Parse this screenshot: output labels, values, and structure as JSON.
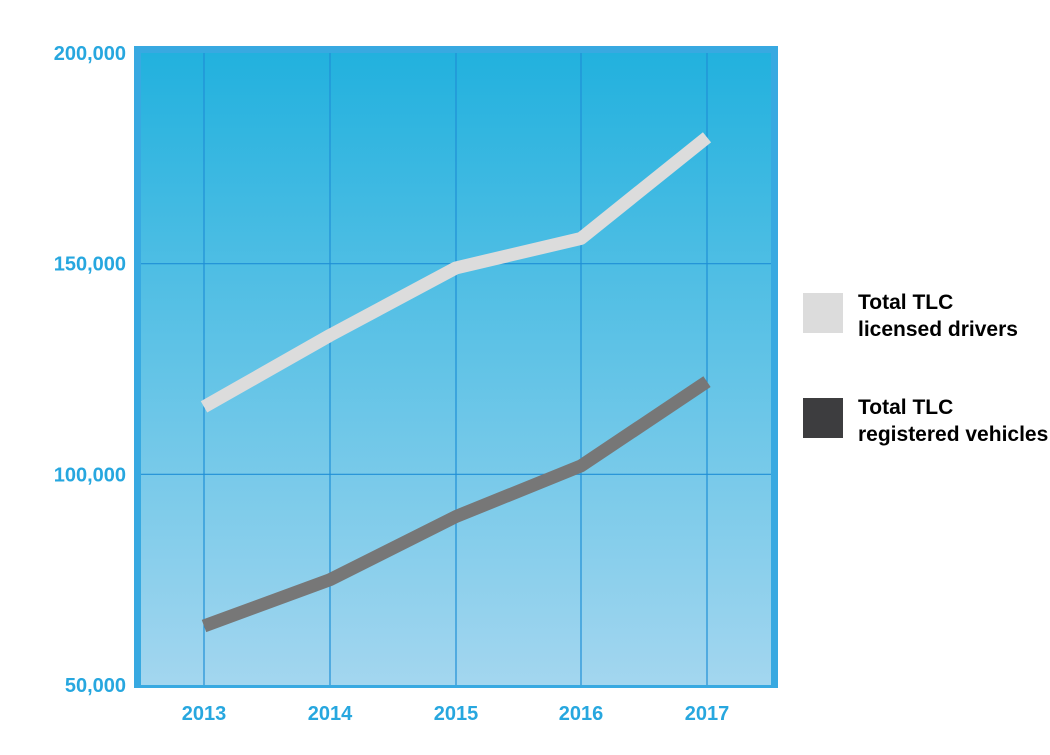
{
  "chart_data": {
    "type": "line",
    "x": [
      "2013",
      "2014",
      "2015",
      "2016",
      "2017"
    ],
    "y_ticks": [
      "50,000",
      "100,000",
      "150,000",
      "200,000"
    ],
    "ylim": [
      50000,
      200000
    ],
    "grid": true,
    "legend_position": "right",
    "series": [
      {
        "name_lines": [
          "Total TLC",
          "licensed drivers"
        ],
        "values": [
          116000,
          133000,
          149000,
          156000,
          180000
        ],
        "color": "#dcdcdc"
      },
      {
        "name_lines": [
          "Total TLC",
          "registered vehicles"
        ],
        "values": [
          64000,
          75000,
          90000,
          102000,
          122000
        ],
        "color": "#777777",
        "legend_color": "#3d3d3f"
      }
    ],
    "tick_color": "#27a7df",
    "frame_color": "#38a9e1",
    "grid_color": "#1f8fd6",
    "background_top": "#22b1de",
    "background_bottom": "#a3d6ef"
  }
}
